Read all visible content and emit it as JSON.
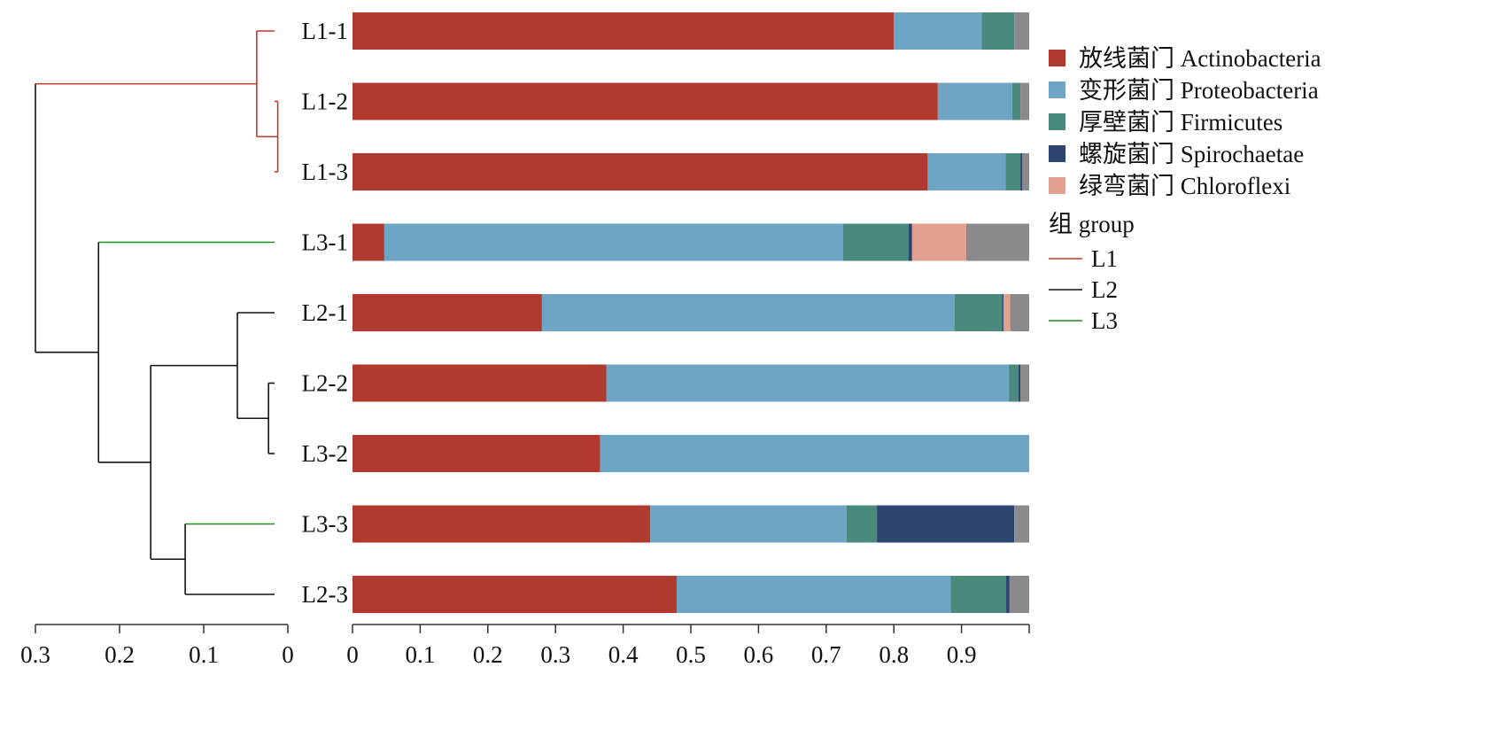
{
  "chart_data": {
    "type": "bar",
    "orientation": "horizontal",
    "stacked": true,
    "samples": [
      "L1-1",
      "L1-2",
      "L1-3",
      "L3-1",
      "L2-1",
      "L2-2",
      "L3-2",
      "L3-3",
      "L2-3"
    ],
    "series": [
      {
        "name": "放线菌门 Actinobacteria",
        "color": "#b03a2e",
        "values": [
          0.8,
          0.865,
          0.85,
          0.047,
          0.28,
          0.375,
          0.366,
          0.44,
          0.479
        ]
      },
      {
        "name": "变形菌门 Proteobacteria",
        "color": "#6ea4c4",
        "values": [
          0.13,
          0.11,
          0.115,
          0.678,
          0.61,
          0.595,
          0.633,
          0.29,
          0.405
        ]
      },
      {
        "name": "厚壁菌门 Firmicutes",
        "color": "#4a8a7c",
        "values": [
          0.048,
          0.012,
          0.022,
          0.097,
          0.07,
          0.014,
          0.0,
          0.045,
          0.082
        ]
      },
      {
        "name": "螺旋菌门 Spirochaetae",
        "color": "#2c4670",
        "values": [
          0.0,
          0.0,
          0.003,
          0.005,
          0.002,
          0.003,
          0.0,
          0.203,
          0.005
        ]
      },
      {
        "name": "绿弯菌门 Chloroflexi",
        "color": "#e2a090",
        "values": [
          0.0,
          0.0,
          0.0,
          0.08,
          0.01,
          0.0,
          0.0,
          0.0,
          0.0
        ]
      },
      {
        "name": "",
        "color": "#8a8a8c",
        "values": [
          0.022,
          0.013,
          0.01,
          0.093,
          0.028,
          0.013,
          0.001,
          0.022,
          0.029
        ]
      }
    ],
    "xlim": [
      0,
      1
    ],
    "x_ticks": [
      "0",
      "0.1",
      "0.2",
      "0.3",
      "0.4",
      "0.5",
      "0.6",
      "0.7",
      "0.8",
      "0.9"
    ],
    "legend_position": "right",
    "group_legend": {
      "title": "组 group",
      "items": [
        {
          "label": "L1",
          "color": "#c0392b"
        },
        {
          "label": "L2",
          "color": "#111111"
        },
        {
          "label": "L3",
          "color": "#1e8c1e"
        }
      ]
    },
    "dendrogram": {
      "scale_ticks": [
        "0.3",
        "0.2",
        "0.1",
        "0"
      ],
      "xlim": [
        0.3,
        0
      ],
      "merges": [
        {
          "id": "A",
          "children": [
            "L1-2",
            "L1-3"
          ],
          "height": 0.012,
          "group": "L1"
        },
        {
          "id": "B",
          "children": [
            "L1-1",
            "A"
          ],
          "height": 0.037,
          "group": "L1"
        },
        {
          "id": "C",
          "children": [
            "L2-2",
            "L3-2"
          ],
          "height": 0.023,
          "group": "L2"
        },
        {
          "id": "D",
          "children": [
            "L2-1",
            "C"
          ],
          "height": 0.06,
          "group": "L2"
        },
        {
          "id": "E",
          "children": [
            "L3-3",
            "L2-3"
          ],
          "height": 0.122,
          "group": "L2"
        },
        {
          "id": "F",
          "children": [
            "D",
            "E"
          ],
          "height": 0.163,
          "group": "L2"
        },
        {
          "id": "G",
          "children": [
            "L3-1",
            "F"
          ],
          "height": 0.225,
          "group": "L2"
        },
        {
          "id": "H",
          "children": [
            "B",
            "G"
          ],
          "height": 0.3,
          "group": "L2"
        }
      ],
      "leaf_groups": {
        "L1-1": "L1",
        "L1-2": "L1",
        "L1-3": "L1",
        "L3-1": "L3",
        "L2-1": "L2",
        "L2-2": "L2",
        "L3-2": "L2",
        "L3-3": "L3",
        "L2-3": "L2"
      }
    }
  }
}
